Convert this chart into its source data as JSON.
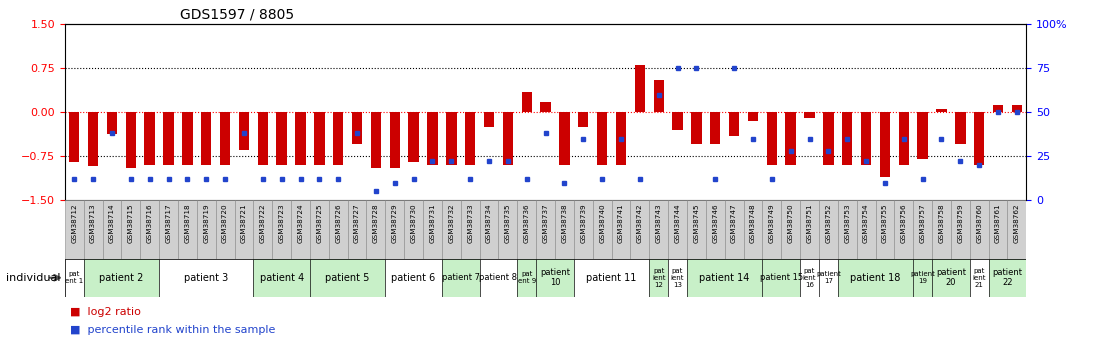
{
  "title": "GDS1597 / 8805",
  "samples": [
    "GSM38712",
    "GSM38713",
    "GSM38714",
    "GSM38715",
    "GSM38716",
    "GSM38717",
    "GSM38718",
    "GSM38719",
    "GSM38720",
    "GSM38721",
    "GSM38722",
    "GSM38723",
    "GSM38724",
    "GSM38725",
    "GSM38726",
    "GSM38727",
    "GSM38728",
    "GSM38729",
    "GSM38730",
    "GSM38731",
    "GSM38732",
    "GSM38733",
    "GSM38734",
    "GSM38735",
    "GSM38736",
    "GSM38737",
    "GSM38738",
    "GSM38739",
    "GSM38740",
    "GSM38741",
    "GSM38742",
    "GSM38743",
    "GSM38744",
    "GSM38745",
    "GSM38746",
    "GSM38747",
    "GSM38748",
    "GSM38749",
    "GSM38750",
    "GSM38751",
    "GSM38752",
    "GSM38753",
    "GSM38754",
    "GSM38755",
    "GSM38756",
    "GSM38757",
    "GSM38758",
    "GSM38759",
    "GSM38760",
    "GSM38761",
    "GSM38762"
  ],
  "log2_ratio": [
    -0.85,
    -0.92,
    -0.38,
    -0.95,
    -0.9,
    -0.9,
    -0.9,
    -0.9,
    -0.9,
    -0.65,
    -0.9,
    -0.9,
    -0.9,
    -0.9,
    -0.9,
    -0.55,
    -0.95,
    -0.95,
    -0.85,
    -0.9,
    -0.9,
    -0.9,
    -0.25,
    -0.9,
    0.35,
    0.18,
    -0.9,
    -0.25,
    -0.9,
    -0.9,
    0.8,
    0.55,
    -0.3,
    -0.55,
    -0.55,
    -0.4,
    -0.15,
    -0.9,
    -0.9,
    -0.1,
    -0.9,
    -0.9,
    -0.9,
    -1.1,
    -0.9,
    -0.8,
    0.05,
    -0.55,
    -0.9,
    0.12,
    0.12
  ],
  "percentile_rank_pct": [
    12,
    12,
    38,
    12,
    12,
    12,
    12,
    12,
    12,
    38,
    12,
    12,
    12,
    12,
    12,
    38,
    5,
    10,
    12,
    22,
    22,
    12,
    22,
    22,
    12,
    38,
    10,
    35,
    12,
    35,
    12,
    60,
    75,
    75,
    12,
    75,
    35,
    12,
    28,
    35,
    28,
    35,
    22,
    10,
    35,
    12,
    35,
    22,
    20,
    50,
    50
  ],
  "patients": [
    {
      "label": "pat\nent 1",
      "start": 0,
      "end": 0,
      "color": "#ffffff"
    },
    {
      "label": "patient 2",
      "start": 1,
      "end": 4,
      "color": "#c8f0c8"
    },
    {
      "label": "patient 3",
      "start": 5,
      "end": 9,
      "color": "#ffffff"
    },
    {
      "label": "patient 4",
      "start": 10,
      "end": 12,
      "color": "#c8f0c8"
    },
    {
      "label": "patient 5",
      "start": 13,
      "end": 16,
      "color": "#c8f0c8"
    },
    {
      "label": "patient 6",
      "start": 17,
      "end": 19,
      "color": "#ffffff"
    },
    {
      "label": "patient 7",
      "start": 20,
      "end": 21,
      "color": "#c8f0c8"
    },
    {
      "label": "patient 8",
      "start": 22,
      "end": 23,
      "color": "#ffffff"
    },
    {
      "label": "pat\nent 9",
      "start": 24,
      "end": 24,
      "color": "#c8f0c8"
    },
    {
      "label": "patient\n10",
      "start": 25,
      "end": 26,
      "color": "#c8f0c8"
    },
    {
      "label": "patient 11",
      "start": 27,
      "end": 30,
      "color": "#ffffff"
    },
    {
      "label": "pat\nient\n12",
      "start": 31,
      "end": 31,
      "color": "#c8f0c8"
    },
    {
      "label": "pat\nient\n13",
      "start": 32,
      "end": 32,
      "color": "#ffffff"
    },
    {
      "label": "patient 14",
      "start": 33,
      "end": 36,
      "color": "#c8f0c8"
    },
    {
      "label": "patient 15",
      "start": 37,
      "end": 38,
      "color": "#c8f0c8"
    },
    {
      "label": "pat\nient\n16",
      "start": 39,
      "end": 39,
      "color": "#ffffff"
    },
    {
      "label": "patient\n17",
      "start": 40,
      "end": 40,
      "color": "#ffffff"
    },
    {
      "label": "patient 18",
      "start": 41,
      "end": 44,
      "color": "#c8f0c8"
    },
    {
      "label": "patient\n19",
      "start": 45,
      "end": 45,
      "color": "#c8f0c8"
    },
    {
      "label": "patient\n20",
      "start": 46,
      "end": 47,
      "color": "#c8f0c8"
    },
    {
      "label": "pat\nient\n21",
      "start": 48,
      "end": 48,
      "color": "#ffffff"
    },
    {
      "label": "patient\n22",
      "start": 49,
      "end": 50,
      "color": "#c8f0c8"
    }
  ],
  "ylim": [
    -1.5,
    1.5
  ],
  "yticks_left": [
    -1.5,
    -0.75,
    0,
    0.75,
    1.5
  ],
  "yticks_right_pct": [
    0,
    25,
    50,
    75,
    100
  ],
  "hline_dotted": [
    0.75,
    -0.75
  ],
  "hline_red_dashed": 0.0,
  "bar_color": "#cc0000",
  "dot_color": "#2244cc",
  "bar_width": 0.55,
  "legend_red_label": "log2 ratio",
  "legend_blue_label": "percentile rank within the sample",
  "xlabel_individual": "individual",
  "gsm_box_color": "#d0d0d0",
  "gsm_box_edge_color": "#888888"
}
